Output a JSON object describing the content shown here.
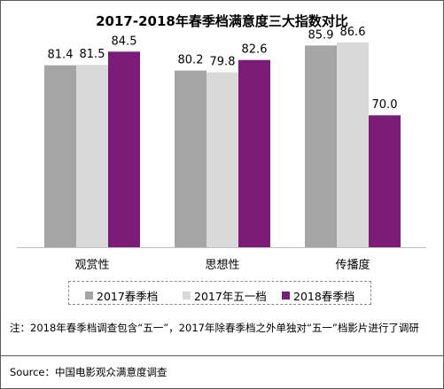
{
  "chart_data": {
    "type": "bar",
    "title": "2017-2018年春季档满意度三大指数对比",
    "categories": [
      "观赏性",
      "思想性",
      "传播度"
    ],
    "series": [
      {
        "name": "2017春季档",
        "color": "#a5a5a5",
        "values": [
          81.4,
          80.2,
          85.9
        ]
      },
      {
        "name": "2017年五一档",
        "color": "#d9d9d9",
        "values": [
          81.5,
          79.8,
          86.6
        ]
      },
      {
        "name": "2018春季档",
        "color": "#7b1c79",
        "values": [
          84.5,
          82.6,
          70.0
        ]
      }
    ],
    "ylim": [
      40,
      90
    ],
    "grid": false,
    "legend_position": "bottom"
  },
  "note": "注：2018年春季档调查包含“五一”，2017年除春季档之外单独对“五一”档影片进行了调研",
  "source": "Source：中国电影观众满意度调查"
}
